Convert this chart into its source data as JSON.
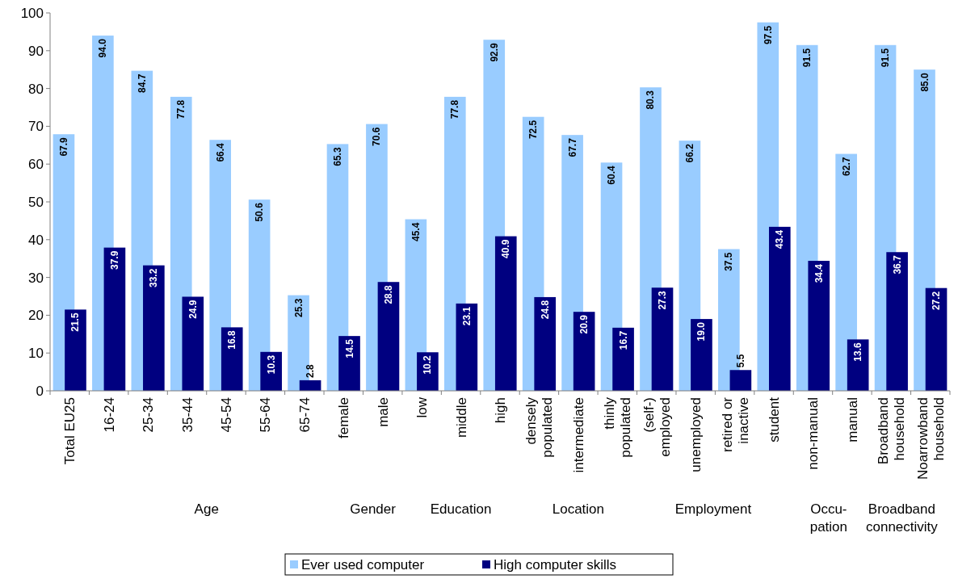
{
  "chart_data": {
    "type": "bar",
    "categories": [
      "Total EU25",
      "16-24",
      "25-34",
      "35-44",
      "45-54",
      "55-64",
      "65-74",
      "female",
      "male",
      "low",
      "middle",
      "high",
      "densely\npopulated",
      "intermediate",
      "thinly\npopulated",
      "(self-)\nemployed",
      "unemployed",
      "retired or\ninactive",
      "student",
      "non-manual",
      "manual",
      "Broadband\nhousehold",
      "Noarrowband\nhousehold"
    ],
    "series": [
      {
        "name": "Ever used computer",
        "color": "#99ccff",
        "values": [
          67.9,
          94.0,
          84.7,
          77.8,
          66.4,
          50.6,
          25.3,
          65.3,
          70.6,
          45.4,
          77.8,
          92.9,
          72.5,
          67.7,
          60.4,
          80.3,
          66.2,
          37.5,
          97.5,
          91.5,
          62.7,
          91.5,
          85.0
        ],
        "value_labels": [
          "67.9",
          "94.0",
          "84.7",
          "77.8",
          "66.4",
          "50.6",
          "25.3",
          "65.3",
          "70.6",
          "45.4",
          "77.8",
          "92.9",
          "72.5",
          "67.7",
          "60.4",
          "80.3",
          "66.2",
          "37.5",
          "97.5",
          "91.5",
          "62.7",
          "91.5",
          "85.0"
        ]
      },
      {
        "name": "High computer skills",
        "color": "#000080",
        "values": [
          21.5,
          37.9,
          33.2,
          24.9,
          16.8,
          10.3,
          2.8,
          14.5,
          28.8,
          10.2,
          23.1,
          40.9,
          24.8,
          20.9,
          16.7,
          27.3,
          19.0,
          5.5,
          43.4,
          34.4,
          13.6,
          36.7,
          27.2
        ],
        "value_labels": [
          "21.5",
          "37.9",
          "33.2",
          "24.9",
          "16.8",
          "10.3",
          "2.8",
          "14.5",
          "28.8",
          "10.2",
          "23.1",
          "40.9",
          "24.8",
          "20.9",
          "16.7",
          "27.3",
          "19.0",
          "5.5",
          "43.4",
          "34.4",
          "13.6",
          "36.7",
          "27.2"
        ]
      }
    ],
    "ylim": [
      0,
      100
    ],
    "yticks": [
      0,
      10,
      20,
      30,
      40,
      50,
      60,
      70,
      80,
      90,
      100
    ],
    "legend": "bottom",
    "grid": false,
    "annotations": [
      "Age",
      "Gender",
      "Education",
      "Location",
      "Employment",
      "Occu-\npation",
      "Broadband\nconnectivity"
    ]
  }
}
